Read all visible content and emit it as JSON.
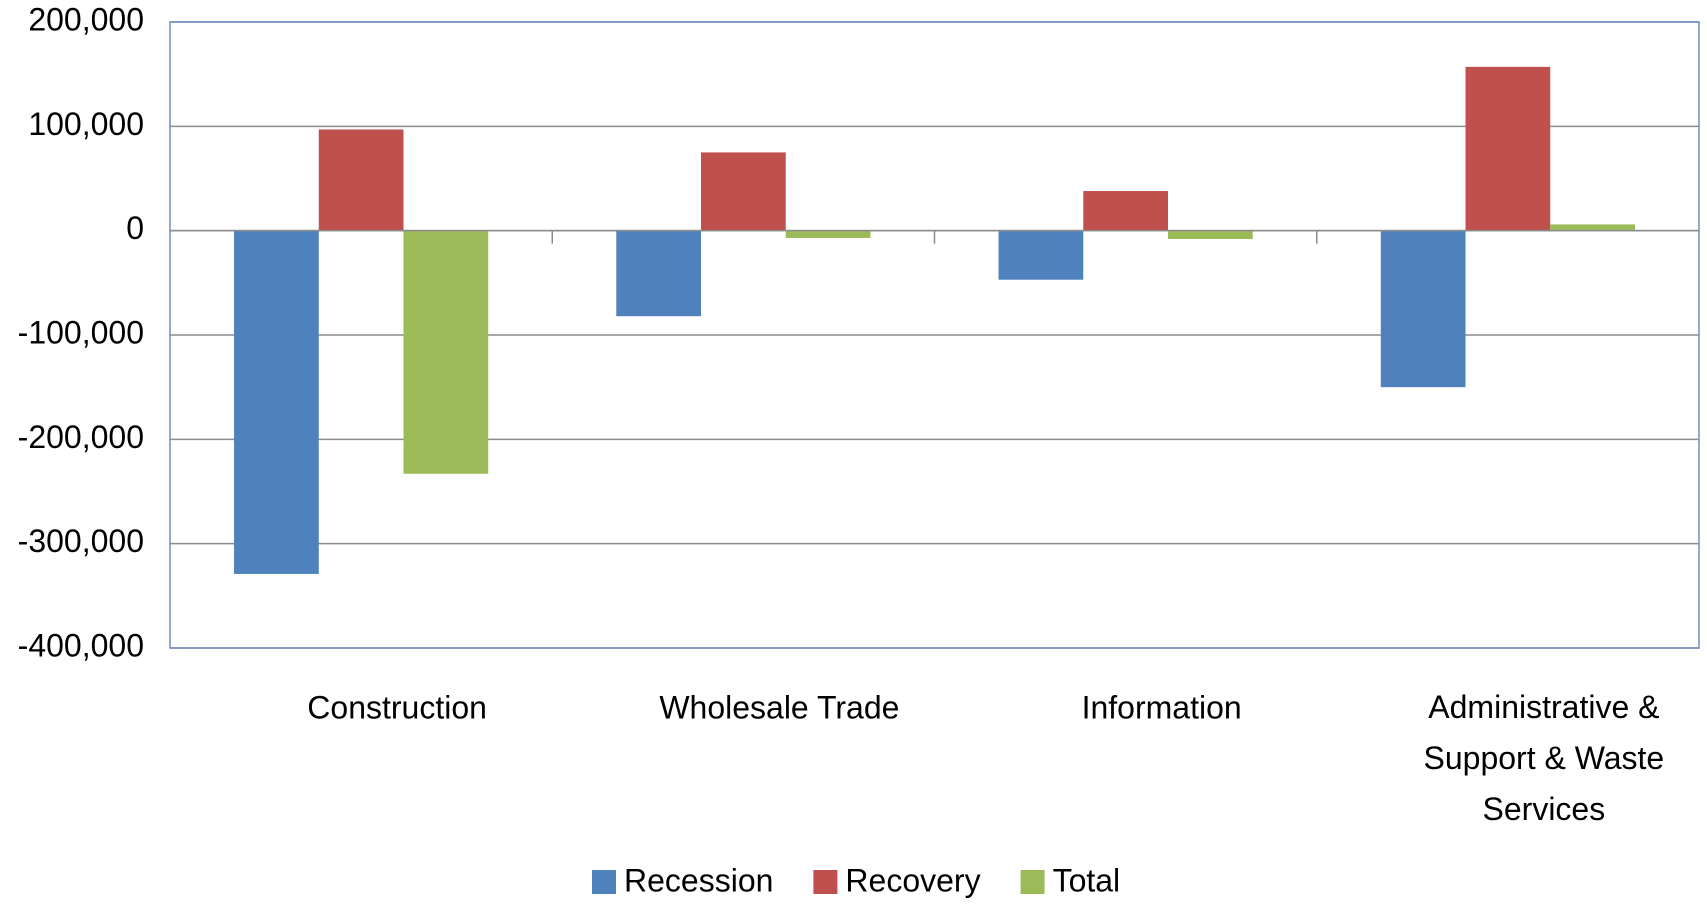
{
  "chart_data": {
    "type": "bar",
    "categories": [
      "Construction",
      "Wholesale Trade",
      "Information",
      "Administrative & Support & Waste Services"
    ],
    "series": [
      {
        "name": "Recession",
        "color": "#4f81bd",
        "values": [
          -329000,
          -82000,
          -47000,
          -150000
        ]
      },
      {
        "name": "Recovery",
        "color": "#c0504d",
        "values": [
          97000,
          75000,
          38000,
          157000
        ]
      },
      {
        "name": "Total",
        "color": "#9bbb59",
        "values": [
          -233000,
          -7000,
          -8000,
          6000
        ]
      }
    ],
    "ylim": [
      -400000,
      200000
    ],
    "yticks": [
      {
        "value": -400000,
        "label": "-400,000"
      },
      {
        "value": -300000,
        "label": "-300,000"
      },
      {
        "value": -200000,
        "label": "-200,000"
      },
      {
        "value": -100000,
        "label": "-100,000"
      },
      0,
      {
        "value": 100000,
        "label": "100,000"
      },
      {
        "value": 200000,
        "label": "200,000"
      }
    ],
    "grid": true,
    "legend": "bottom"
  }
}
